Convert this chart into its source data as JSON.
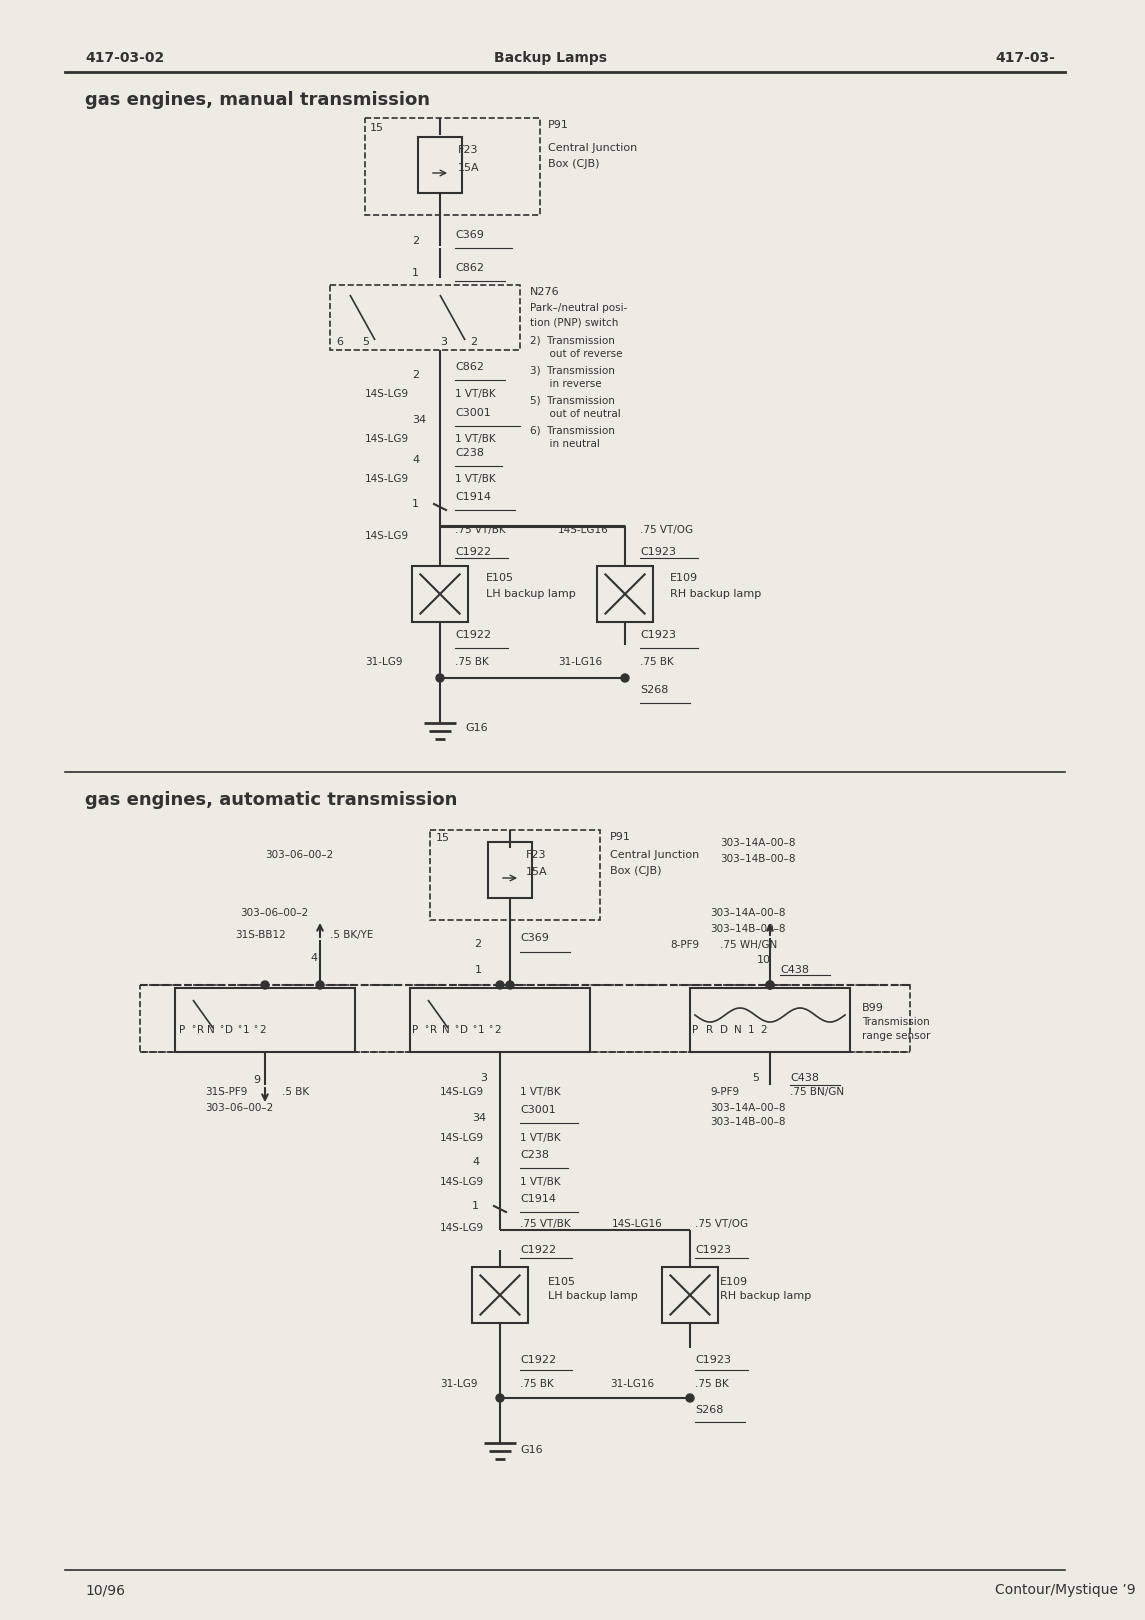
{
  "page_header_left": "417-03-02",
  "page_header_center": "Backup Lamps",
  "page_header_right": "417-03-",
  "page_footer_left": "10/96",
  "page_footer_right": "Contour/Mystique ’9",
  "bg_color": "#eeebe5",
  "line_color": "#323232",
  "section1_title": "gas engines, manual transmission",
  "section2_title": "gas engines, automatic transmission"
}
